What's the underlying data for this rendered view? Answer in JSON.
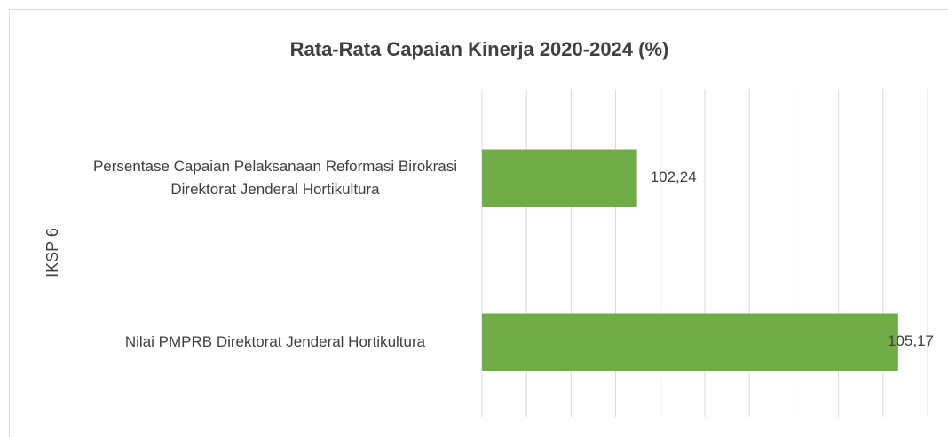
{
  "chart_data": {
    "type": "bar",
    "orientation": "horizontal",
    "title": "Rata-Rata Capaian Kinerja 2020-2024 (%)",
    "group_label": "IKSP 6",
    "categories": [
      "Persentase Capaian Pelaksanaan Reformasi Birokrasi Direktorat Jenderal Hortikultura",
      "Nilai PMPRB Direktorat Jenderal Hortikultura"
    ],
    "values": [
      102.24,
      105.17
    ],
    "value_labels": [
      "102,24",
      "105,17"
    ],
    "color": "#70ad47",
    "xlim": [
      100.5,
      105.5
    ],
    "xticks": [
      100.5,
      101,
      101.5,
      102,
      102.5,
      103,
      103.5,
      104,
      104.5,
      105,
      105.5
    ],
    "grid": true
  }
}
